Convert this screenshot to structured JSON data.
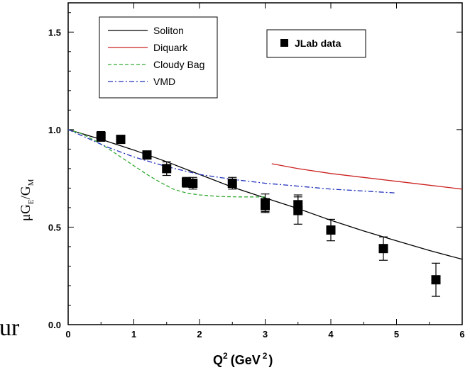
{
  "page": {
    "cutoff_text": "ur"
  },
  "chart_data": {
    "type": "line",
    "xlabel": {
      "base": "Q",
      "sup": "2",
      "unit_open": "(GeV",
      "unit_sup": "2",
      "unit_close": ")"
    },
    "ylabel": {
      "mu": "μ",
      "g1": "G",
      "sub1": "E",
      "slash": "/",
      "g2": "G",
      "sub2": "M"
    },
    "xlim": [
      0,
      6
    ],
    "ylim": [
      0,
      1.65
    ],
    "x_ticks": [
      {
        "v": 0,
        "label": "0"
      },
      {
        "v": 1,
        "label": "1"
      },
      {
        "v": 2,
        "label": "2"
      },
      {
        "v": 3,
        "label": "3"
      },
      {
        "v": 4,
        "label": "4"
      },
      {
        "v": 5,
        "label": "5"
      },
      {
        "v": 6,
        "label": "6"
      }
    ],
    "y_ticks": [
      {
        "v": 0,
        "label": "0.0"
      },
      {
        "v": 0.5,
        "label": "0.5"
      },
      {
        "v": 1.0,
        "label": "1.0"
      },
      {
        "v": 1.5,
        "label": "1.5"
      }
    ],
    "legend": {
      "placement": "top-left",
      "entries": [
        {
          "name": "Soliton",
          "color": "#000000",
          "style": "solid"
        },
        {
          "name": "Diquark",
          "color": "#cc2222",
          "style": "solid"
        },
        {
          "name": "Cloudy Bag",
          "color": "#33aa33",
          "style": "dashed"
        },
        {
          "name": "VMD",
          "color": "#2233bb",
          "style": "dashdot"
        }
      ]
    },
    "data_legend": {
      "placement": "top-right",
      "name": "JLab data"
    },
    "series": [
      {
        "name": "Soliton",
        "color": "#000000",
        "style": "solid",
        "x": [
          0,
          0.5,
          1.0,
          1.5,
          2.0,
          2.5,
          3.0,
          3.5,
          4.0,
          4.5,
          5.0,
          5.5,
          6.0
        ],
        "y": [
          1.0,
          0.95,
          0.895,
          0.835,
          0.77,
          0.705,
          0.65,
          0.595,
          0.535,
          0.48,
          0.43,
          0.38,
          0.335
        ]
      },
      {
        "name": "Diquark",
        "color": "#cc2222",
        "style": "solid",
        "x": [
          3.1,
          3.5,
          4.0,
          4.5,
          5.0,
          5.5,
          6.0
        ],
        "y": [
          0.825,
          0.8,
          0.775,
          0.755,
          0.735,
          0.715,
          0.695
        ]
      },
      {
        "name": "Cloudy Bag",
        "color": "#33aa33",
        "style": "dashed",
        "x": [
          0,
          0.2,
          0.4,
          0.6,
          0.8,
          1.0,
          1.2,
          1.4,
          1.6,
          1.8,
          2.0,
          2.3,
          2.6,
          3.0
        ],
        "y": [
          1.0,
          0.98,
          0.945,
          0.905,
          0.86,
          0.815,
          0.77,
          0.73,
          0.695,
          0.675,
          0.665,
          0.657,
          0.655,
          0.655
        ]
      },
      {
        "name": "VMD",
        "color": "#2233bb",
        "style": "dashdot",
        "x": [
          0,
          0.3,
          0.6,
          1.0,
          1.5,
          2.0,
          2.5,
          3.0,
          3.5,
          4.0,
          4.5,
          5.0
        ],
        "y": [
          1.0,
          0.955,
          0.91,
          0.86,
          0.81,
          0.77,
          0.745,
          0.725,
          0.71,
          0.695,
          0.685,
          0.675
        ]
      }
    ],
    "points": {
      "name": "JLab data",
      "x": [
        0.5,
        0.8,
        1.2,
        1.5,
        1.8,
        1.9,
        2.5,
        3.0,
        3.0,
        3.5,
        3.5,
        4.0,
        4.8,
        5.6
      ],
      "y": [
        0.965,
        0.95,
        0.87,
        0.8,
        0.73,
        0.725,
        0.725,
        0.625,
        0.61,
        0.615,
        0.585,
        0.485,
        0.39,
        0.23
      ],
      "err": [
        0.025,
        0.02,
        0.02,
        0.035,
        0.025,
        0.03,
        0.03,
        0.045,
        0.035,
        0.05,
        0.07,
        0.055,
        0.06,
        0.085
      ]
    }
  }
}
